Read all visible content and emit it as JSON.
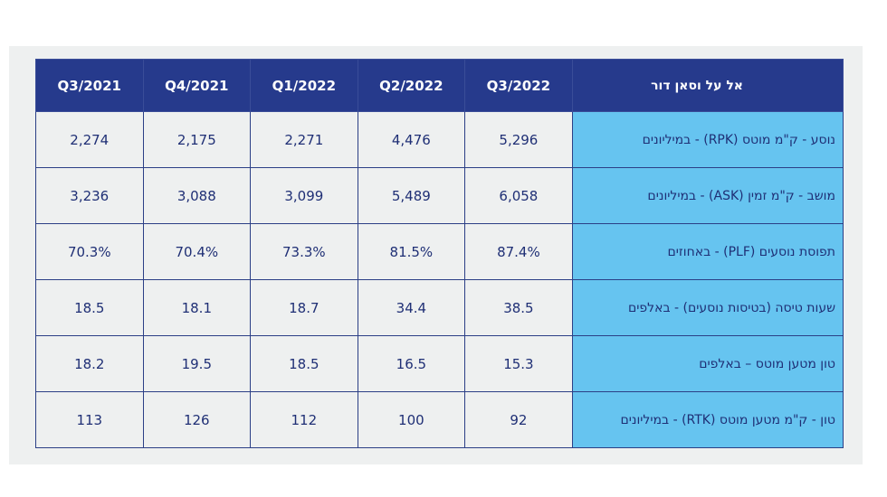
{
  "table": {
    "columns": [
      "Q3/2021",
      "Q4/2021",
      "Q1/2022",
      "Q2/2022",
      "Q3/2022"
    ],
    "label_header": "אל על וסאן דור",
    "rows": [
      {
        "label": "נוסע - ק\"מ מוטס (RPK) - במיליונים",
        "values": [
          "2,274",
          "2,175",
          "2,271",
          "4,476",
          "5,296"
        ]
      },
      {
        "label": "מושב - ק\"מ זמין (ASK) - במיליונים",
        "values": [
          "3,236",
          "3,088",
          "3,099",
          "5,489",
          "6,058"
        ]
      },
      {
        "label": "תפוסת נוסעים (PLF) - באחוזים",
        "values": [
          "70.3%",
          "70.4%",
          "73.3%",
          "81.5%",
          "87.4%"
        ]
      },
      {
        "label": "שעות טיסה (בטיסות נוסעים) - באלפים",
        "values": [
          "18.5",
          "18.1",
          "18.7",
          "34.4",
          "38.5"
        ]
      },
      {
        "label": "טון מטען מוטס – באלפים",
        "values": [
          "18.2",
          "19.5",
          "18.5",
          "16.5",
          "15.3"
        ]
      },
      {
        "label": "טון - ק\"מ מטען מוטס (RTK) - במיליונים",
        "values": [
          "113",
          "126",
          "112",
          "100",
          "92"
        ]
      }
    ]
  },
  "colors": {
    "header_bg": "#263a8c",
    "label_cell_bg": "#66c4f0",
    "value_cell_bg": "#eef0f0",
    "text": "#1f2f75"
  }
}
